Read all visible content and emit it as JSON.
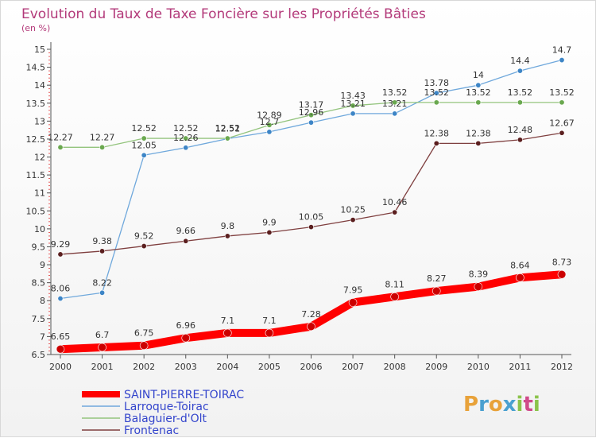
{
  "title": "Evolution du Taux de Taxe Foncière sur les Propriétés Bâties",
  "subtitle": "(en %)",
  "logo": {
    "text": "Proxiti",
    "colors": [
      "#e8a23a",
      "#4aa0d0",
      "#e8a23a",
      "#4aa0d0",
      "#8bc34a",
      "#d04a8a",
      "#8bc34a"
    ]
  },
  "chart_data": {
    "type": "line",
    "title": "Evolution du Taux de Taxe Foncière sur les Propriétés Bâties",
    "subtitle": "(en %)",
    "x": [
      "2000",
      "2001",
      "2002",
      "2003",
      "2004",
      "2005",
      "2006",
      "2007",
      "2008",
      "2009",
      "2010",
      "2011",
      "2012"
    ],
    "ylim": [
      6.5,
      15
    ],
    "yticks": [
      "6.5",
      "7",
      "7.5",
      "8",
      "8.5",
      "9",
      "9.5",
      "10",
      "10.5",
      "11",
      "11.5",
      "12",
      "12.5",
      "13",
      "13.5",
      "14",
      "14.5",
      "15"
    ],
    "grid": false,
    "legend_position": "bottom-left",
    "series": [
      {
        "name": "SAINT-PIERRE-TOIRAC",
        "color": "#ff0000",
        "point_color": "#cc0000",
        "thick": true,
        "values": [
          6.65,
          6.7,
          6.75,
          6.96,
          7.1,
          7.1,
          7.28,
          7.95,
          8.11,
          8.27,
          8.39,
          8.64,
          8.73
        ],
        "labels": [
          "6.65",
          "6.7",
          "6.75",
          "6.96",
          "7.1",
          "7.1",
          "7.28",
          "7.95",
          "8.11",
          "8.27",
          "8.39",
          "8.64",
          "8.73"
        ]
      },
      {
        "name": "Larroque-Toirac",
        "color": "#6fa8dc",
        "point_color": "#3d85c6",
        "thick": false,
        "values": [
          8.06,
          8.22,
          12.05,
          12.26,
          12.51,
          12.7,
          12.96,
          13.21,
          13.21,
          13.78,
          14,
          14.4,
          14.7
        ],
        "labels": [
          "8.06",
          "8.22",
          "12.05",
          "12.26",
          "12.51",
          "12.7",
          "12.96",
          "13.21",
          "13.21",
          "13.78",
          "14",
          "14.4",
          "14.7"
        ]
      },
      {
        "name": "Balaguier-d'Olt",
        "color": "#93c47d",
        "point_color": "#6aa84f",
        "thick": false,
        "values": [
          12.27,
          12.27,
          12.52,
          12.52,
          12.52,
          12.89,
          13.17,
          13.43,
          13.52,
          13.52,
          13.52,
          13.52,
          13.52
        ],
        "labels": [
          "12.27",
          "12.27",
          "12.52",
          "12.52",
          "12.52",
          "12.89",
          "13.17",
          "13.43",
          "13.52",
          "13.52",
          "13.52",
          "13.52",
          "13.52"
        ]
      },
      {
        "name": "Frontenac",
        "color": "#7f3f3f",
        "point_color": "#5b1f1f",
        "thick": false,
        "values": [
          9.29,
          9.38,
          9.52,
          9.66,
          9.8,
          9.9,
          10.05,
          10.25,
          10.46,
          12.38,
          12.38,
          12.48,
          12.67
        ],
        "labels": [
          "9.29",
          "9.38",
          "9.52",
          "9.66",
          "9.8",
          "9.9",
          "10.05",
          "10.25",
          "10.46",
          "12.38",
          "12.38",
          "12.48",
          "12.67"
        ]
      }
    ]
  }
}
